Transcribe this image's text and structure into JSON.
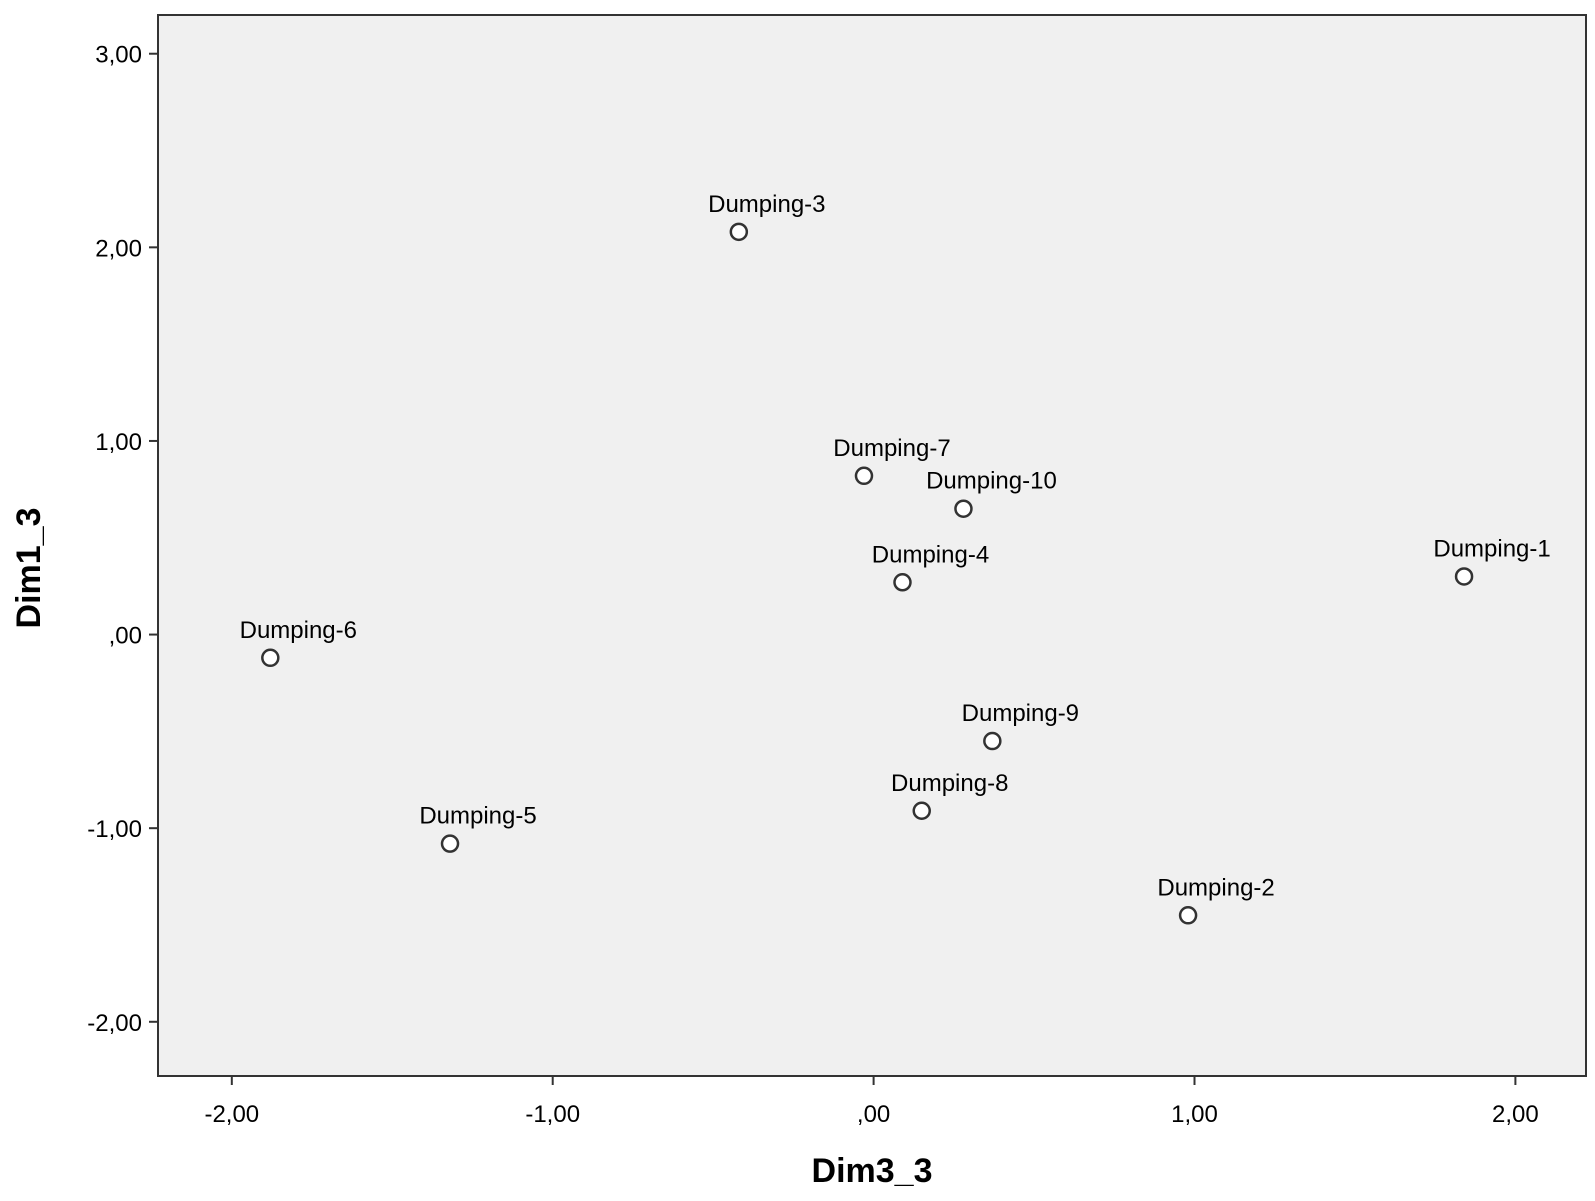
{
  "chart_data": {
    "type": "scatter",
    "title": "",
    "xlabel": "Dim3_3",
    "ylabel": "Dim1_3",
    "xlim": [
      -2.23,
      2.22
    ],
    "ylim": [
      -2.28,
      3.2
    ],
    "x_ticks": [
      -2,
      -1,
      0,
      1,
      2
    ],
    "x_tick_labels": [
      "-2,00",
      "-1,00",
      ",00",
      "1,00",
      "2,00"
    ],
    "y_ticks": [
      -2,
      -1,
      0,
      1,
      2,
      3
    ],
    "y_tick_labels": [
      "-2,00",
      "-1,00",
      ",00",
      "1,00",
      "2,00",
      "3,00"
    ],
    "grid": false,
    "legend": "none",
    "colors": {
      "plot_background": "#f0f0f0",
      "marker_fill": "#ffffff",
      "marker_stroke": "#333333",
      "axis": "#333333"
    },
    "points": [
      {
        "label": "Dumping-1",
        "x": 1.84,
        "y": 0.3
      },
      {
        "label": "Dumping-2",
        "x": 0.98,
        "y": -1.45
      },
      {
        "label": "Dumping-3",
        "x": -0.42,
        "y": 2.08
      },
      {
        "label": "Dumping-4",
        "x": 0.09,
        "y": 0.27
      },
      {
        "label": "Dumping-5",
        "x": -1.32,
        "y": -1.08
      },
      {
        "label": "Dumping-6",
        "x": -1.88,
        "y": -0.12
      },
      {
        "label": "Dumping-7",
        "x": -0.03,
        "y": 0.82
      },
      {
        "label": "Dumping-8",
        "x": 0.15,
        "y": -0.91
      },
      {
        "label": "Dumping-9",
        "x": 0.37,
        "y": -0.55
      },
      {
        "label": "Dumping-10",
        "x": 0.28,
        "y": 0.65
      }
    ]
  }
}
